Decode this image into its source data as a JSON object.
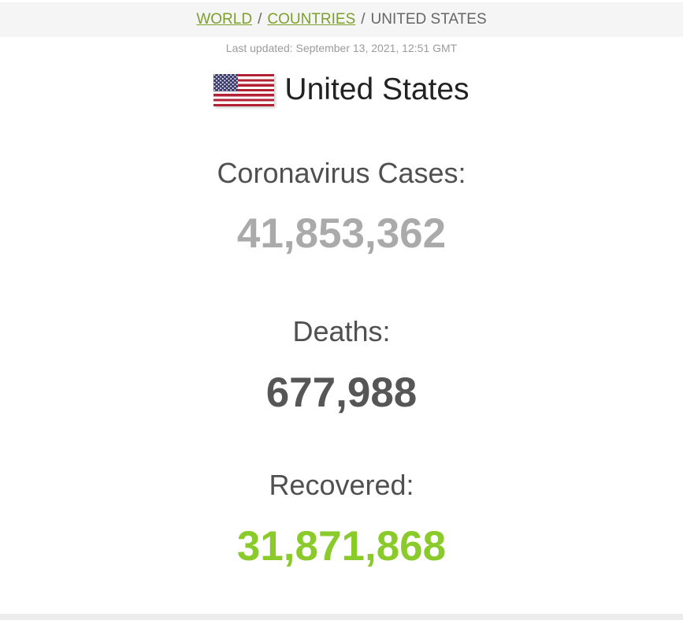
{
  "breadcrumb": {
    "links": [
      {
        "label": "WORLD"
      },
      {
        "label": "COUNTRIES"
      }
    ],
    "separator": "/",
    "current": "UNITED STATES"
  },
  "updated_text": "Last updated: September 13, 2021, 12:51 GMT",
  "country": {
    "name": "United States",
    "flag_icon": "us-flag-icon"
  },
  "counters": [
    {
      "label": "Coronavirus Cases:",
      "value": "41,853,362",
      "color": "#aaaaaa"
    },
    {
      "label": "Deaths:",
      "value": "677,988",
      "color": "#565656"
    },
    {
      "label": "Recovered:",
      "value": "31,871,868",
      "color": "#8aca2b"
    }
  ],
  "colors": {
    "breadcrumb_bar_bg": "#f5f5f5",
    "breadcrumb_link_green": "#7ca02c",
    "bottom_strip_bg": "#ececec",
    "title_color": "#222222",
    "label_color": "#505050"
  }
}
